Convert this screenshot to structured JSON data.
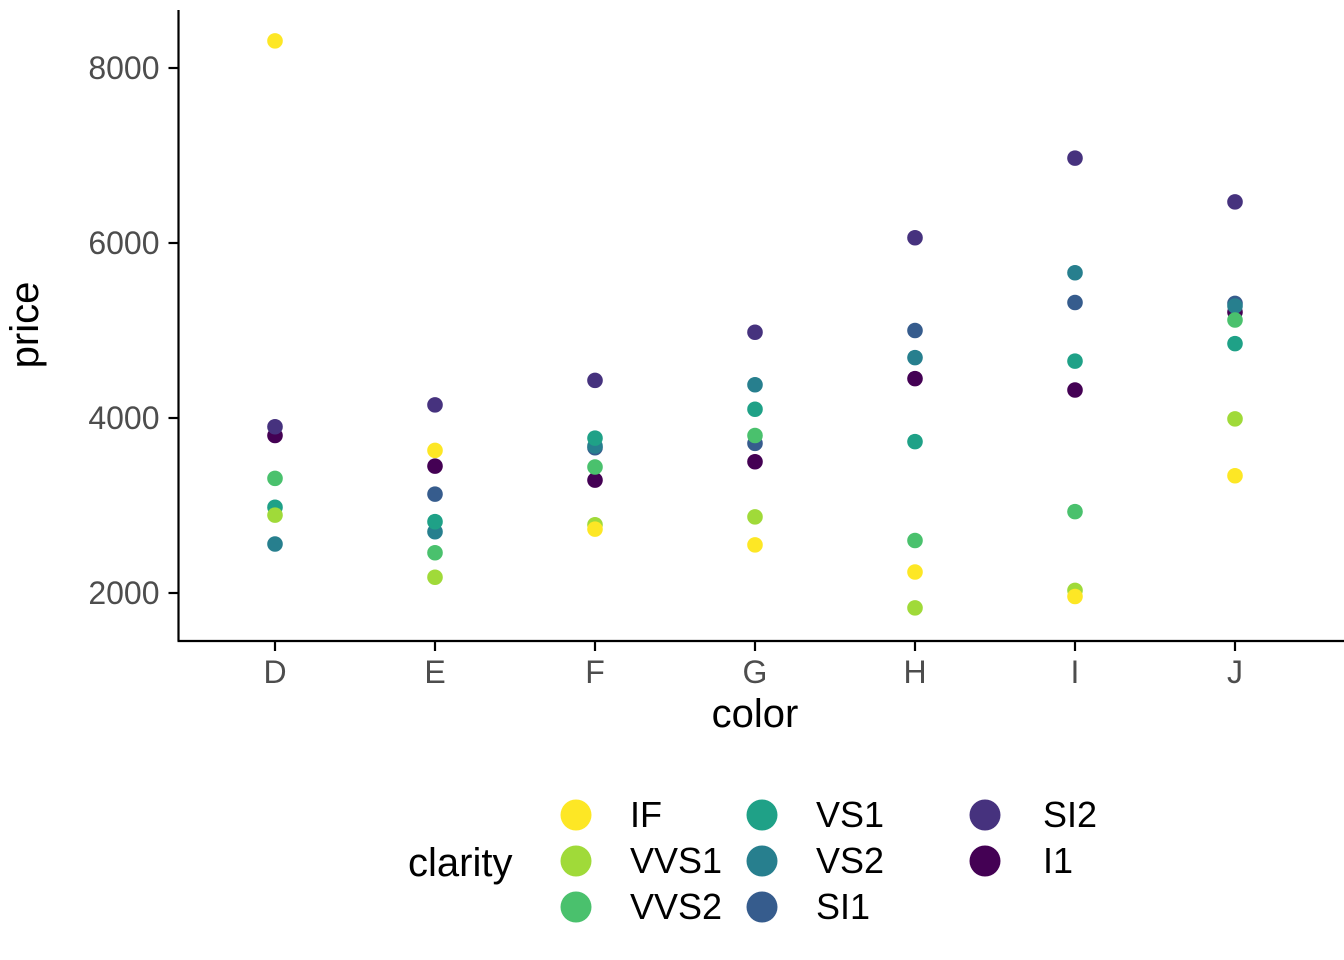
{
  "chart_data": {
    "type": "scatter",
    "title": "",
    "xlabel": "color",
    "ylabel": "price",
    "categories": [
      "D",
      "E",
      "F",
      "G",
      "H",
      "I",
      "J"
    ],
    "y_ticks": [
      2000,
      4000,
      6000,
      8000
    ],
    "ylim": [
      1460,
      8660
    ],
    "grid": "off",
    "point_style": "filled-circle",
    "legend": {
      "title": "clarity",
      "position": "bottom",
      "entries_column_major": [
        [
          "IF",
          "VVS1",
          "VVS2"
        ],
        [
          "VS1",
          "VS2",
          "SI1"
        ],
        [
          "SI2",
          "I1"
        ]
      ]
    },
    "series": [
      {
        "name": "IF",
        "color": "#FDE725",
        "values": [
          8310,
          3630,
          2730,
          2550,
          2240,
          1960,
          3340
        ]
      },
      {
        "name": "VVS1",
        "color": "#A0DA39",
        "values": [
          2890,
          2180,
          2780,
          2870,
          1830,
          2030,
          3990
        ]
      },
      {
        "name": "VVS2",
        "color": "#4AC16D",
        "values": [
          3310,
          2460,
          3440,
          3800,
          2600,
          2930,
          5120
        ]
      },
      {
        "name": "VS1",
        "color": "#1FA187",
        "values": [
          2980,
          2815,
          3770,
          4100,
          3730,
          4650,
          4850
        ]
      },
      {
        "name": "VS2",
        "color": "#277F8E",
        "values": [
          2560,
          2700,
          3680,
          4380,
          4690,
          5660,
          5280
        ]
      },
      {
        "name": "SI1",
        "color": "#365C8D",
        "values": [
          null,
          3130,
          3660,
          3710,
          5000,
          5320,
          5310
        ]
      },
      {
        "name": "SI2",
        "color": "#46327E",
        "values": [
          3900,
          4150,
          4430,
          4980,
          6060,
          6970,
          6470
        ]
      },
      {
        "name": "I1",
        "color": "#440154",
        "values": [
          3800,
          3450,
          3290,
          3500,
          4450,
          4320,
          5210
        ]
      }
    ],
    "colors": {
      "background": "#FFFFFF",
      "axis_line": "#000000",
      "tick_label": "#4D4D4D",
      "axis_title": "#000000",
      "legend_text": "#000000"
    }
  }
}
